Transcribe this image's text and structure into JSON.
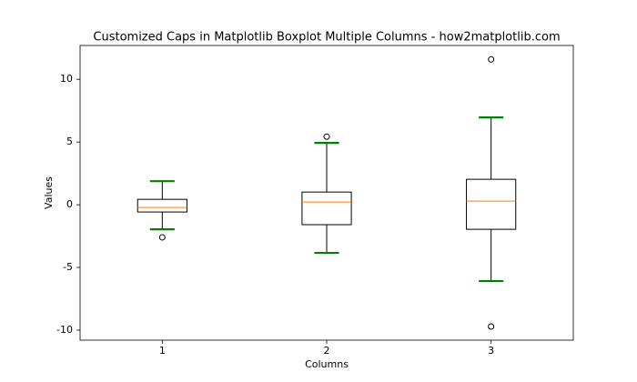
{
  "chart_data": {
    "type": "boxplot",
    "title": "Customized Caps in Matplotlib Boxplot Multiple Columns - how2matplotlib.com",
    "x_label": "Columns",
    "y_label": "Values",
    "x": [
      1,
      2,
      3
    ],
    "boxes": [
      {
        "whisker_low": -1.96,
        "q1": -0.58,
        "median": -0.22,
        "q3": 0.43,
        "whisker_high": 1.88,
        "outliers": [
          -2.6
        ]
      },
      {
        "whisker_low": -3.84,
        "q1": -1.59,
        "median": 0.22,
        "q3": 1.01,
        "whisker_high": 4.93,
        "outliers": [
          5.43
        ]
      },
      {
        "whisker_low": -6.09,
        "q1": -1.96,
        "median": 0.29,
        "q3": 2.03,
        "whisker_high": 6.96,
        "outliers": [
          11.59,
          -9.71
        ]
      }
    ],
    "xlim": [
      0.5,
      3.5
    ],
    "xticks": [
      1,
      2,
      3
    ],
    "ylim": [
      -10.8,
      12.7
    ],
    "yticks": [
      -10,
      -5,
      0,
      5,
      10
    ],
    "box_color": "#000000",
    "cap_color": "#008000",
    "median_color": "#ff7f0e"
  }
}
